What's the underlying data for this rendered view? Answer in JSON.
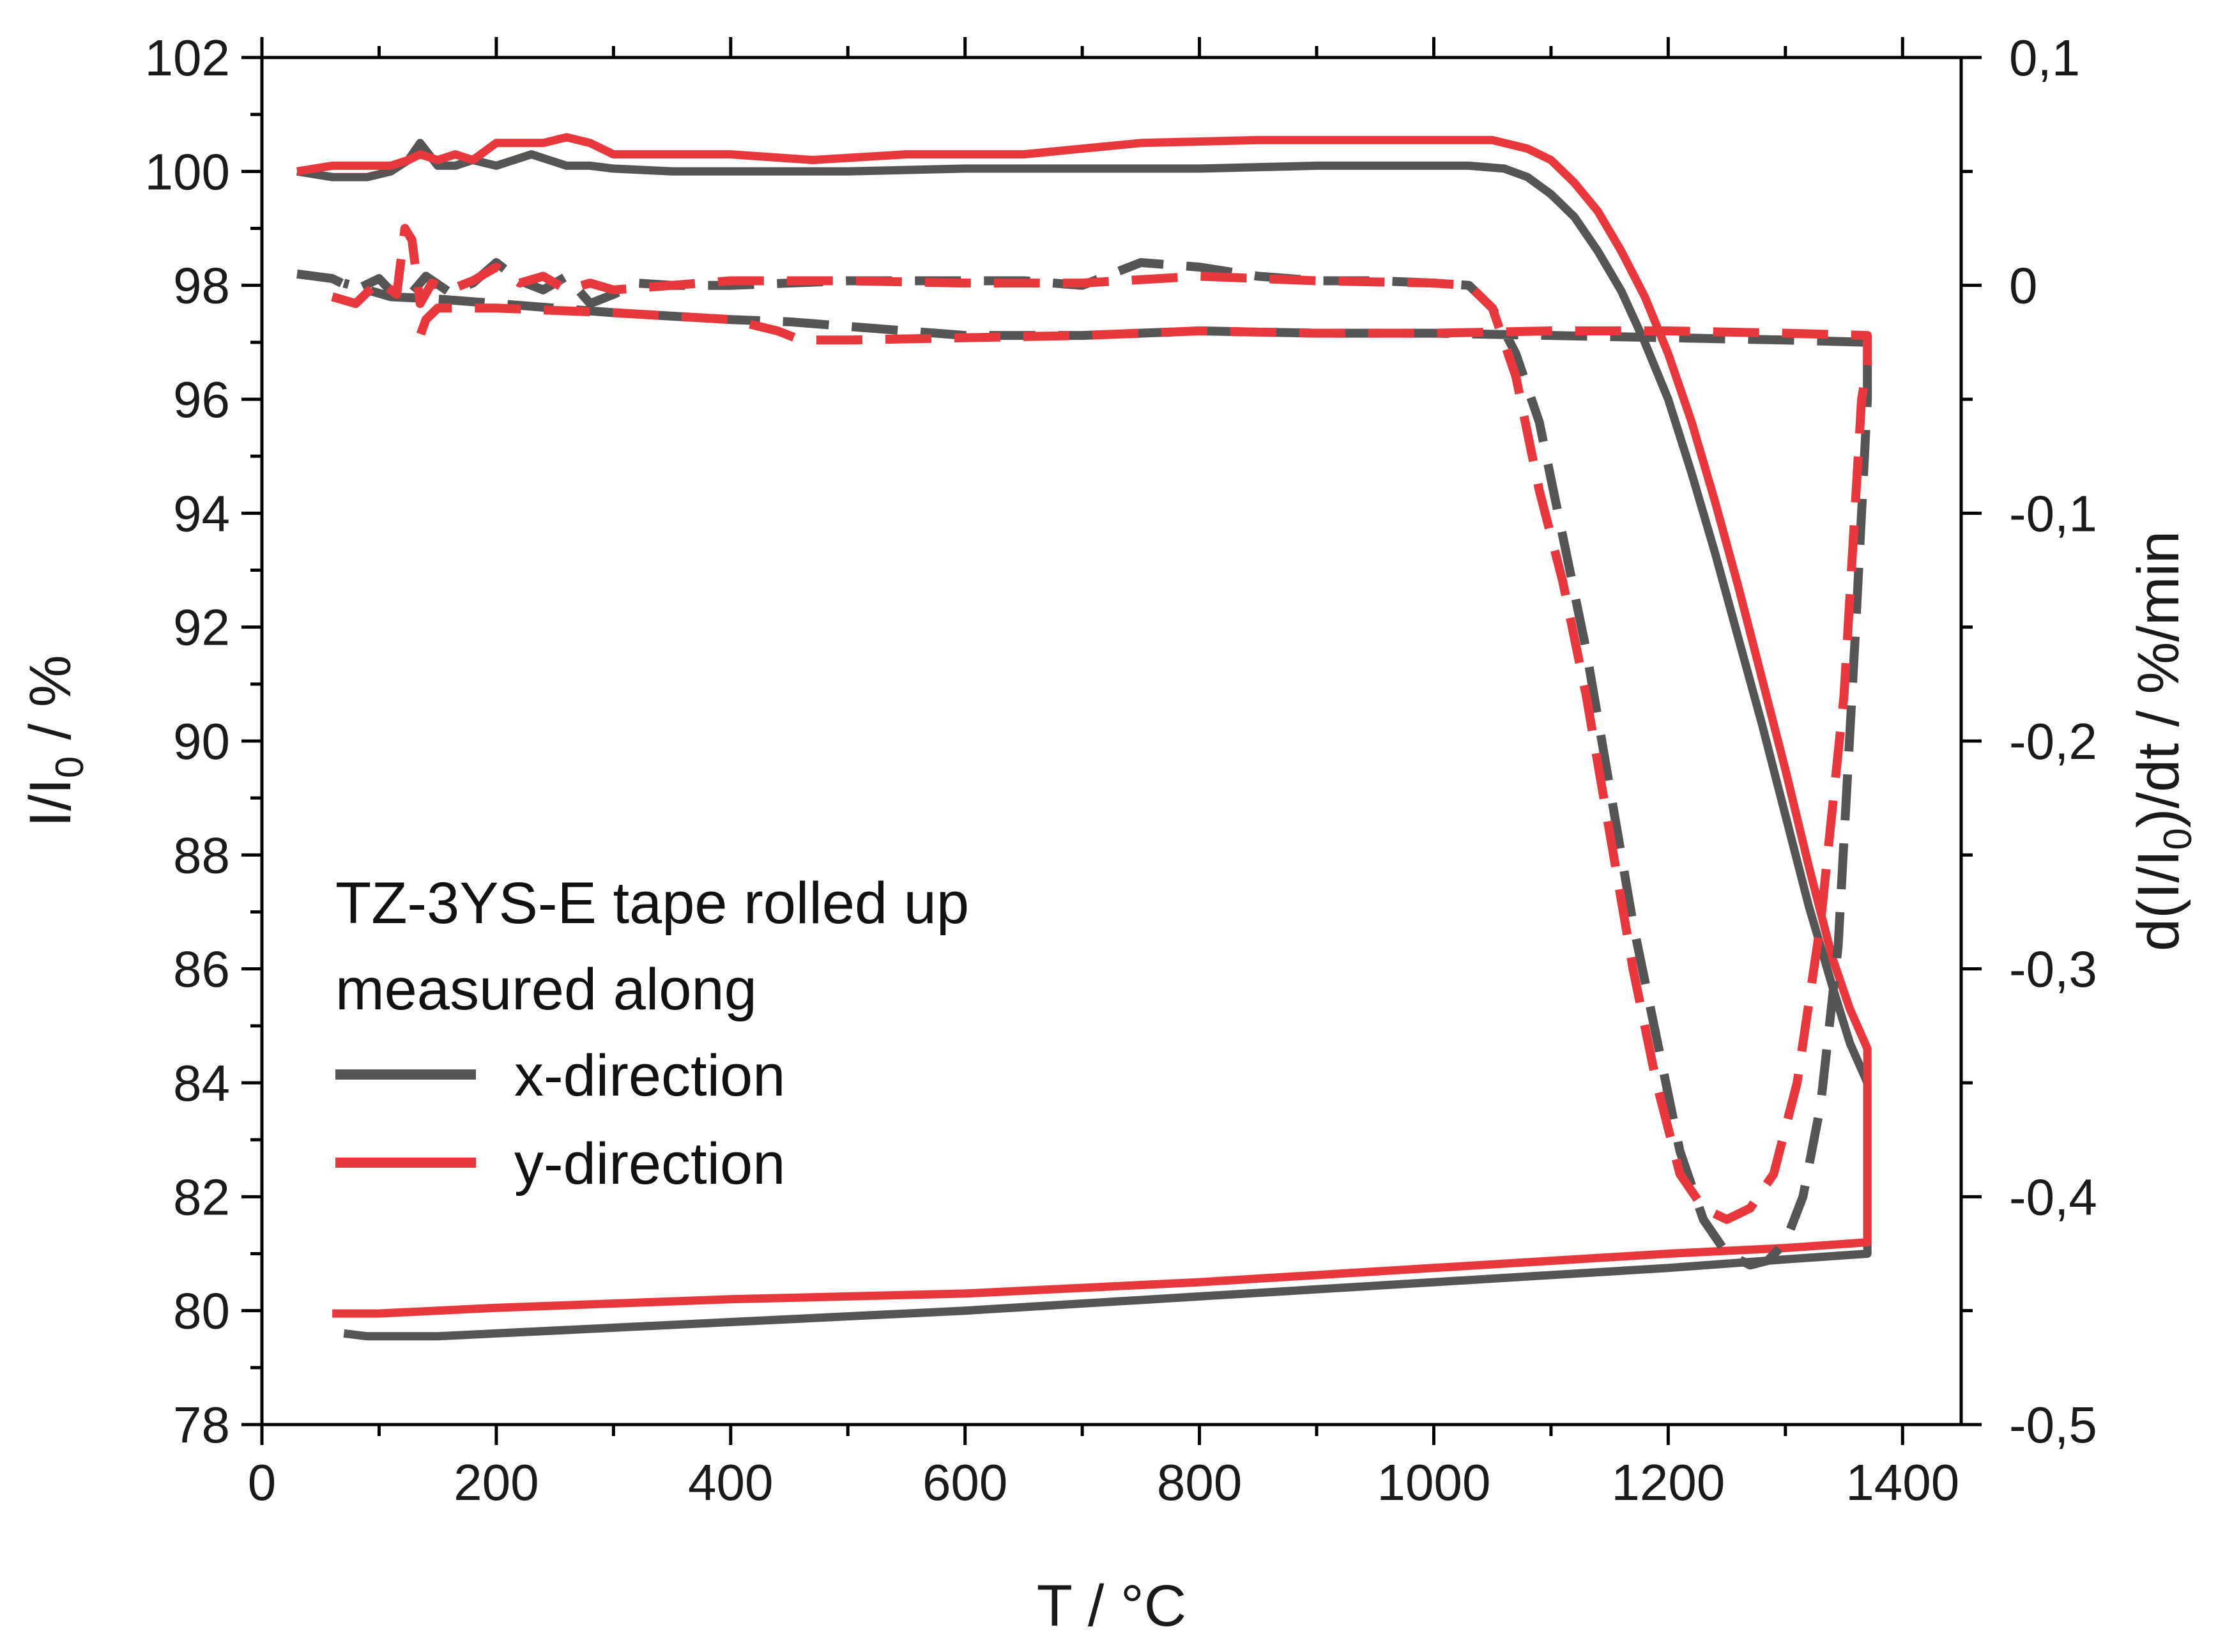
{
  "chart_data": {
    "type": "line",
    "xlabel": "T / °C",
    "ylabel": {
      "main": "I/I",
      "sub": "0",
      "tail": " / %"
    },
    "y2label": {
      "main": "d(I/I",
      "sub": "0",
      "tail": ")/dt / %/min"
    },
    "xlim": [
      0,
      1450
    ],
    "ylim": [
      78,
      102
    ],
    "y2lim": [
      -0.5,
      0.1
    ],
    "x_ticks": [
      0,
      200,
      400,
      600,
      800,
      1000,
      1200,
      1400
    ],
    "y_ticks": [
      78,
      80,
      82,
      84,
      86,
      88,
      90,
      92,
      94,
      96,
      98,
      100,
      102
    ],
    "y2_ticks": [
      {
        "value": -0.5,
        "label": "-0,5"
      },
      {
        "value": -0.4,
        "label": "-0,4"
      },
      {
        "value": -0.3,
        "label": "-0,3"
      },
      {
        "value": -0.2,
        "label": "-0,2"
      },
      {
        "value": -0.1,
        "label": "-0,1"
      },
      {
        "value": 0,
        "label": "0"
      },
      {
        "value": 0.1,
        "label": "0,1"
      }
    ],
    "legend": {
      "title_lines": [
        "TZ-3YS-E tape rolled up",
        "measured along"
      ],
      "entries": [
        {
          "label": "x-direction",
          "color": "#555555"
        },
        {
          "label": "y-direction",
          "color": "#e8383d"
        }
      ]
    },
    "series": [
      {
        "name": "x-direction",
        "axis": "left",
        "style": "solid",
        "color": "#555555",
        "x": [
          30,
          60,
          90,
          110,
          125,
          135,
          150,
          165,
          180,
          200,
          215,
          230,
          245,
          260,
          280,
          300,
          350,
          400,
          500,
          600,
          700,
          800,
          900,
          1000,
          1030,
          1060,
          1080,
          1100,
          1120,
          1140,
          1160,
          1180,
          1200,
          1220,
          1240,
          1260,
          1280,
          1300,
          1320,
          1340,
          1355,
          1370,
          1370,
          1300,
          1200,
          1000,
          800,
          600,
          400,
          300,
          200,
          150,
          110,
          90,
          70
        ],
        "y": [
          100.0,
          99.9,
          99.9,
          100.0,
          100.2,
          100.5,
          100.1,
          100.1,
          100.2,
          100.1,
          100.2,
          100.3,
          100.2,
          100.1,
          100.1,
          100.05,
          100.0,
          100.0,
          100.0,
          100.05,
          100.05,
          100.05,
          100.1,
          100.1,
          100.1,
          100.05,
          99.9,
          99.6,
          99.2,
          98.6,
          97.9,
          97.0,
          96.0,
          94.7,
          93.3,
          91.8,
          90.3,
          88.7,
          87.1,
          85.7,
          84.7,
          84.0,
          81.0,
          80.9,
          80.75,
          80.5,
          80.25,
          80.0,
          79.8,
          79.7,
          79.6,
          79.55,
          79.55,
          79.55,
          79.6
        ]
      },
      {
        "name": "y-direction",
        "axis": "left",
        "style": "solid",
        "color": "#e8383d",
        "x": [
          30,
          60,
          90,
          110,
          125,
          135,
          150,
          165,
          180,
          200,
          220,
          240,
          260,
          280,
          300,
          350,
          400,
          470,
          550,
          650,
          750,
          850,
          950,
          1050,
          1080,
          1100,
          1120,
          1140,
          1160,
          1180,
          1200,
          1220,
          1240,
          1260,
          1280,
          1300,
          1320,
          1340,
          1355,
          1370,
          1370,
          1300,
          1200,
          1000,
          800,
          600,
          400,
          200,
          100,
          60
        ],
        "y": [
          100.0,
          100.1,
          100.1,
          100.1,
          100.2,
          100.3,
          100.2,
          100.3,
          100.2,
          100.5,
          100.5,
          100.5,
          100.6,
          100.5,
          100.3,
          100.3,
          100.3,
          100.2,
          100.3,
          100.3,
          100.5,
          100.55,
          100.55,
          100.55,
          100.4,
          100.2,
          99.8,
          99.3,
          98.6,
          97.8,
          96.8,
          95.6,
          94.2,
          92.7,
          91.1,
          89.5,
          87.8,
          86.2,
          85.3,
          84.6,
          81.2,
          81.1,
          81.0,
          80.75,
          80.5,
          80.3,
          80.2,
          80.05,
          79.95,
          79.95
        ]
      },
      {
        "name": "x-direction derivative",
        "axis": "right",
        "style": "dashed",
        "color": "#555555",
        "x": [
          30,
          60,
          80,
          100,
          120,
          140,
          160,
          180,
          200,
          220,
          240,
          260,
          280,
          300,
          320,
          350,
          400,
          500,
          600,
          650,
          700,
          750,
          800,
          850,
          900,
          950,
          1000,
          1030,
          1050,
          1070,
          1090,
          1110,
          1130,
          1150,
          1170,
          1190,
          1210,
          1230,
          1250,
          1270,
          1285,
          1300,
          1315,
          1330,
          1345,
          1360,
          1370,
          1370,
          1300,
          1200,
          1100,
          1000,
          900,
          800,
          700,
          600,
          500,
          450,
          400,
          300,
          200,
          150,
          110,
          70
        ],
        "y": [
          0.005,
          0.003,
          -0.002,
          0.003,
          -0.008,
          0.004,
          -0.003,
          0.001,
          0.01,
          0.002,
          -0.002,
          0.004,
          -0.008,
          -0.004,
          0.001,
          0.0,
          0.0,
          0.002,
          0.002,
          0.002,
          0.0,
          0.01,
          0.008,
          0.004,
          0.002,
          0.002,
          0.001,
          0.0,
          -0.01,
          -0.03,
          -0.06,
          -0.11,
          -0.16,
          -0.22,
          -0.28,
          -0.33,
          -0.38,
          -0.41,
          -0.425,
          -0.43,
          -0.428,
          -0.42,
          -0.4,
          -0.36,
          -0.29,
          -0.15,
          -0.05,
          -0.025,
          -0.024,
          -0.023,
          -0.022,
          -0.021,
          -0.021,
          -0.02,
          -0.022,
          -0.022,
          -0.018,
          -0.016,
          -0.015,
          -0.012,
          -0.008,
          -0.006,
          -0.005,
          0.001
        ]
      },
      {
        "name": "y-direction derivative",
        "axis": "right",
        "style": "dashed",
        "color": "#e8383d",
        "x": [
          60,
          80,
          100,
          115,
          122,
          128,
          135,
          145,
          160,
          180,
          200,
          220,
          240,
          260,
          280,
          300,
          350,
          400,
          500,
          600,
          700,
          800,
          900,
          1000,
          1030,
          1050,
          1070,
          1090,
          1110,
          1130,
          1150,
          1170,
          1190,
          1210,
          1230,
          1250,
          1270,
          1290,
          1310,
          1330,
          1350,
          1365,
          1370,
          1370,
          1300,
          1200,
          1100,
          1000,
          900,
          800,
          700,
          600,
          500,
          460,
          440,
          400,
          300,
          200,
          150,
          140,
          135
        ],
        "y": [
          -0.005,
          -0.008,
          0.002,
          -0.004,
          0.025,
          0.02,
          -0.008,
          0.001,
          -0.002,
          0.002,
          0.008,
          0.001,
          0.004,
          -0.002,
          0.001,
          -0.002,
          0.0,
          0.002,
          0.002,
          0.001,
          0.001,
          0.004,
          0.002,
          0.001,
          0.0,
          -0.01,
          -0.04,
          -0.09,
          -0.13,
          -0.18,
          -0.24,
          -0.3,
          -0.35,
          -0.39,
          -0.405,
          -0.41,
          -0.405,
          -0.39,
          -0.35,
          -0.28,
          -0.18,
          -0.05,
          -0.035,
          -0.022,
          -0.021,
          -0.02,
          -0.02,
          -0.021,
          -0.021,
          -0.02,
          -0.022,
          -0.023,
          -0.024,
          -0.024,
          -0.02,
          -0.015,
          -0.012,
          -0.01,
          -0.01,
          -0.015,
          -0.022
        ]
      }
    ]
  }
}
